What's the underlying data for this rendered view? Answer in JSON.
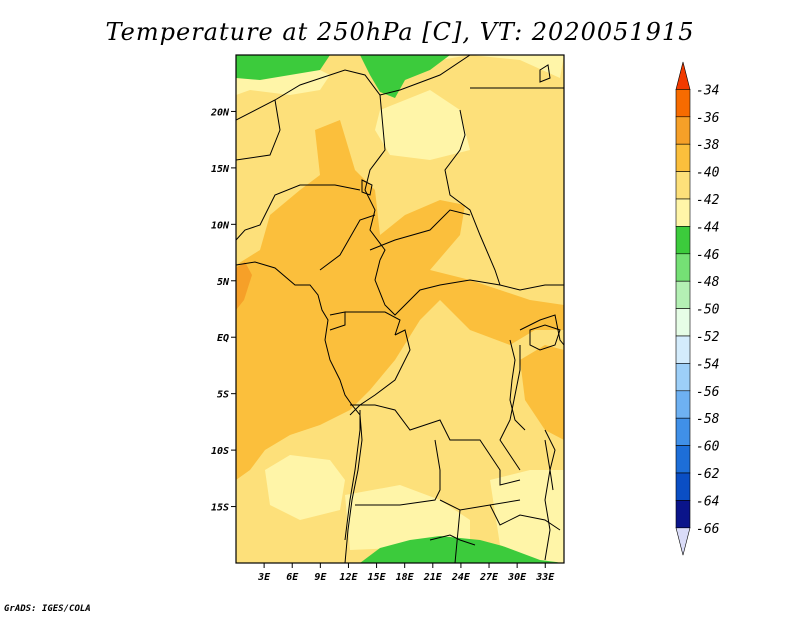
{
  "title": "Temperature at 250hPa [C], VT: 2020051915",
  "credit": "GrADS: IGES/COLA",
  "map": {
    "lon_range": [
      0,
      35
    ],
    "lat_range": [
      -20,
      25
    ],
    "lat_ticks": [
      {
        "value": 20,
        "label": "20N"
      },
      {
        "value": 15,
        "label": "15N"
      },
      {
        "value": 10,
        "label": "10N"
      },
      {
        "value": 5,
        "label": "5N"
      },
      {
        "value": 0,
        "label": "EQ"
      },
      {
        "value": -5,
        "label": "5S"
      },
      {
        "value": -10,
        "label": "10S"
      },
      {
        "value": -15,
        "label": "15S"
      }
    ],
    "lon_ticks": [
      {
        "value": 3,
        "label": "3E"
      },
      {
        "value": 6,
        "label": "6E"
      },
      {
        "value": 9,
        "label": "9E"
      },
      {
        "value": 12,
        "label": "12E"
      },
      {
        "value": 15,
        "label": "15E"
      },
      {
        "value": 18,
        "label": "18E"
      },
      {
        "value": 21,
        "label": "21E"
      },
      {
        "value": 24,
        "label": "24E"
      },
      {
        "value": 27,
        "label": "27E"
      },
      {
        "value": 30,
        "label": "30E"
      },
      {
        "value": 33,
        "label": "33E"
      }
    ],
    "colors": {
      "c_38_36": "#f6a028",
      "c_40_38": "#fbbf3c",
      "c_42_40": "#fde07a",
      "c_44_42": "#fff5a8",
      "c_46_44": "#3ccb3c",
      "border": "#000000",
      "frame": "#000000"
    }
  },
  "colorbar": {
    "labels": [
      "-34",
      "-36",
      "-38",
      "-40",
      "-42",
      "-44",
      "-46",
      "-48",
      "-50",
      "-52",
      "-54",
      "-56",
      "-58",
      "-60",
      "-62",
      "-64",
      "-66"
    ],
    "colors": [
      "#f03a00",
      "#f76b00",
      "#f6a028",
      "#fbbf3c",
      "#fde07a",
      "#fff5a8",
      "#3ccb3c",
      "#75e075",
      "#b4f0b4",
      "#e6fde6",
      "#d4ecfc",
      "#9dcff8",
      "#6eb1f2",
      "#4090e8",
      "#1d6ed8",
      "#0a4ec4",
      "#0a148a",
      "#dadcf8"
    ]
  }
}
